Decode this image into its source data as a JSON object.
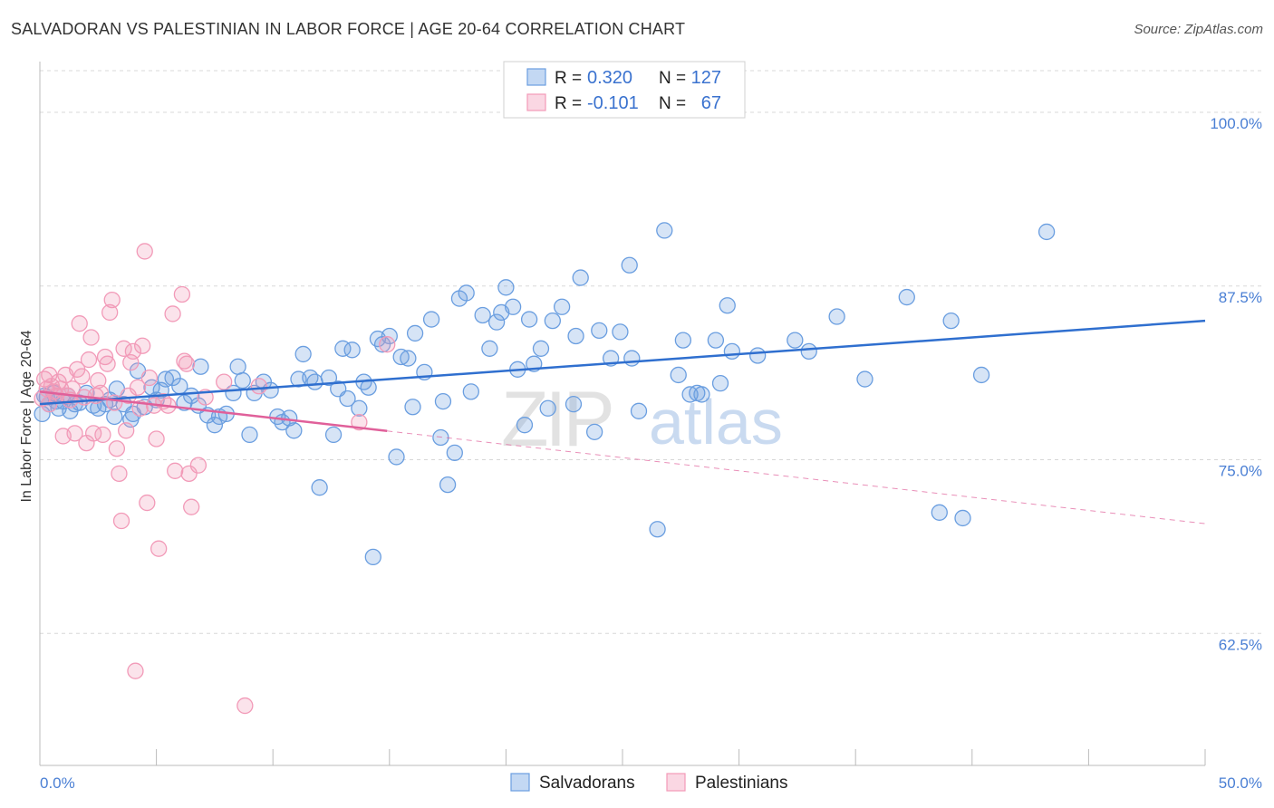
{
  "chart_data": {
    "type": "scatter",
    "title": "SALVADORAN VS PALESTINIAN IN LABOR FORCE | AGE 20-64 CORRELATION CHART",
    "source": "Source: ZipAtlas.com",
    "xlabel": "",
    "ylabel": "In Labor Force | Age 20-64",
    "xlim": [
      0,
      50
    ],
    "ylim": [
      53,
      103
    ],
    "x_tick_labels": [
      "0.0%",
      "50.0%"
    ],
    "y_ticks": [
      62.5,
      75.0,
      87.5,
      100.0
    ],
    "y_tick_labels": [
      "62.5%",
      "75.0%",
      "87.5%",
      "100.0%"
    ],
    "grid": "horizontal dashed",
    "legend_position": "top-center",
    "watermark": "ZIPatlas",
    "stats": [
      {
        "r_label": "R =",
        "r_value": "0.320",
        "n_label": "N =",
        "n_value": "127"
      },
      {
        "r_label": "R =",
        "r_value": "-0.101",
        "n_label": "N =",
        "n_value": "67"
      }
    ],
    "series": [
      {
        "name": "Salvadorans",
        "color": "#6a9ee0",
        "line_color": "#2f6fcf",
        "trend": {
          "x": [
            0,
            50
          ],
          "y": [
            79.0,
            85.0
          ],
          "dashed_from": null
        },
        "points": [
          [
            0.1,
            78.3
          ],
          [
            0.3,
            79.5
          ],
          [
            0.4,
            79.0
          ],
          [
            0.6,
            79.8
          ],
          [
            0.8,
            78.7
          ],
          [
            1.0,
            79.2
          ],
          [
            1.2,
            79.6
          ],
          [
            1.5,
            79.0
          ],
          [
            1.7,
            79.1
          ],
          [
            2.0,
            79.8
          ],
          [
            2.3,
            78.9
          ],
          [
            2.5,
            78.7
          ],
          [
            2.8,
            79.0
          ],
          [
            3.0,
            79.3
          ],
          [
            3.2,
            78.1
          ],
          [
            3.3,
            80.1
          ],
          [
            3.6,
            79.0
          ],
          [
            3.9,
            77.9
          ],
          [
            4.0,
            78.3
          ],
          [
            4.2,
            81.4
          ],
          [
            4.5,
            78.8
          ],
          [
            4.8,
            80.2
          ],
          [
            5.0,
            79.3
          ],
          [
            5.2,
            80.0
          ],
          [
            5.4,
            80.8
          ],
          [
            5.7,
            80.9
          ],
          [
            6.0,
            80.3
          ],
          [
            6.2,
            79.1
          ],
          [
            6.5,
            79.6
          ],
          [
            6.8,
            78.9
          ],
          [
            6.9,
            81.7
          ],
          [
            7.2,
            78.2
          ],
          [
            7.5,
            77.5
          ],
          [
            7.7,
            78.1
          ],
          [
            8.0,
            78.3
          ],
          [
            8.3,
            79.8
          ],
          [
            8.5,
            81.7
          ],
          [
            8.7,
            80.7
          ],
          [
            9.0,
            76.8
          ],
          [
            9.2,
            79.8
          ],
          [
            9.6,
            80.6
          ],
          [
            9.9,
            80.0
          ],
          [
            10.2,
            78.1
          ],
          [
            10.4,
            77.7
          ],
          [
            10.7,
            78.0
          ],
          [
            10.9,
            77.1
          ],
          [
            11.1,
            80.8
          ],
          [
            11.3,
            82.6
          ],
          [
            11.6,
            80.9
          ],
          [
            11.8,
            80.6
          ],
          [
            12.0,
            73.0
          ],
          [
            12.4,
            80.9
          ],
          [
            12.6,
            76.8
          ],
          [
            12.8,
            80.1
          ],
          [
            13.0,
            83.0
          ],
          [
            13.2,
            79.4
          ],
          [
            13.4,
            82.9
          ],
          [
            13.7,
            78.7
          ],
          [
            13.9,
            80.6
          ],
          [
            14.1,
            80.2
          ],
          [
            14.3,
            68.0
          ],
          [
            14.5,
            83.7
          ],
          [
            14.7,
            83.3
          ],
          [
            15.0,
            83.9
          ],
          [
            15.3,
            75.2
          ],
          [
            15.5,
            82.4
          ],
          [
            15.8,
            82.3
          ],
          [
            16.0,
            78.8
          ],
          [
            16.1,
            84.1
          ],
          [
            16.5,
            81.3
          ],
          [
            16.8,
            85.1
          ],
          [
            17.2,
            76.6
          ],
          [
            17.3,
            79.2
          ],
          [
            17.5,
            73.2
          ],
          [
            17.8,
            75.5
          ],
          [
            18.0,
            86.6
          ],
          [
            18.3,
            87.0
          ],
          [
            18.5,
            79.9
          ],
          [
            19.0,
            85.4
          ],
          [
            19.3,
            83.0
          ],
          [
            19.6,
            84.9
          ],
          [
            19.8,
            85.6
          ],
          [
            20.0,
            87.4
          ],
          [
            20.3,
            86.0
          ],
          [
            20.5,
            81.5
          ],
          [
            20.8,
            77.5
          ],
          [
            21.0,
            85.1
          ],
          [
            21.2,
            81.9
          ],
          [
            21.5,
            83.0
          ],
          [
            21.8,
            78.7
          ],
          [
            22.0,
            85.0
          ],
          [
            22.4,
            86.0
          ],
          [
            22.9,
            79.0
          ],
          [
            23.0,
            83.9
          ],
          [
            23.2,
            88.1
          ],
          [
            23.8,
            77.0
          ],
          [
            24.0,
            84.3
          ],
          [
            24.5,
            82.3
          ],
          [
            24.9,
            84.2
          ],
          [
            25.3,
            89.0
          ],
          [
            25.4,
            82.3
          ],
          [
            25.7,
            78.5
          ],
          [
            26.5,
            70.0
          ],
          [
            26.8,
            91.5
          ],
          [
            27.4,
            81.1
          ],
          [
            27.6,
            83.6
          ],
          [
            27.9,
            79.7
          ],
          [
            28.2,
            79.8
          ],
          [
            28.4,
            79.7
          ],
          [
            29.0,
            83.6
          ],
          [
            29.2,
            80.5
          ],
          [
            29.5,
            86.1
          ],
          [
            29.7,
            82.8
          ],
          [
            30.8,
            82.5
          ],
          [
            32.4,
            83.6
          ],
          [
            33.0,
            82.8
          ],
          [
            34.2,
            85.3
          ],
          [
            35.4,
            80.8
          ],
          [
            37.2,
            86.7
          ],
          [
            38.6,
            71.2
          ],
          [
            39.1,
            85.0
          ],
          [
            39.6,
            70.8
          ],
          [
            40.4,
            81.1
          ],
          [
            43.2,
            91.4
          ],
          [
            0.2,
            79.6
          ],
          [
            0.7,
            79.2
          ],
          [
            1.3,
            78.5
          ]
        ]
      },
      {
        "name": "Palestinians",
        "color": "#f29ab8",
        "line_color": "#e0609a",
        "trend": {
          "x": [
            0,
            50
          ],
          "y": [
            79.9,
            70.4
          ],
          "dashed_from": 14.9
        },
        "points": [
          [
            0.1,
            79.4
          ],
          [
            0.2,
            80.8
          ],
          [
            0.3,
            80.1
          ],
          [
            0.4,
            81.1
          ],
          [
            0.5,
            80.3
          ],
          [
            0.6,
            79.9
          ],
          [
            0.7,
            79.6
          ],
          [
            0.8,
            80.6
          ],
          [
            0.9,
            80.1
          ],
          [
            1.0,
            76.7
          ],
          [
            1.1,
            81.1
          ],
          [
            1.2,
            79.6
          ],
          [
            1.3,
            79.3
          ],
          [
            1.4,
            80.1
          ],
          [
            1.5,
            76.9
          ],
          [
            1.6,
            81.5
          ],
          [
            1.7,
            84.8
          ],
          [
            1.8,
            81.0
          ],
          [
            1.9,
            79.5
          ],
          [
            2.0,
            76.2
          ],
          [
            2.1,
            82.2
          ],
          [
            2.2,
            83.8
          ],
          [
            2.3,
            76.9
          ],
          [
            2.4,
            79.6
          ],
          [
            2.5,
            80.7
          ],
          [
            2.6,
            79.8
          ],
          [
            2.7,
            76.8
          ],
          [
            2.8,
            82.4
          ],
          [
            2.9,
            81.9
          ],
          [
            3.0,
            85.6
          ],
          [
            3.1,
            86.5
          ],
          [
            3.2,
            79.1
          ],
          [
            3.3,
            75.8
          ],
          [
            3.4,
            74.0
          ],
          [
            3.5,
            70.6
          ],
          [
            3.6,
            83.0
          ],
          [
            3.7,
            77.1
          ],
          [
            3.8,
            79.6
          ],
          [
            3.9,
            82.0
          ],
          [
            4.0,
            82.8
          ],
          [
            4.1,
            59.8
          ],
          [
            4.2,
            80.2
          ],
          [
            4.3,
            78.7
          ],
          [
            4.4,
            83.2
          ],
          [
            4.5,
            90.0
          ],
          [
            4.6,
            71.9
          ],
          [
            4.7,
            80.9
          ],
          [
            4.9,
            78.9
          ],
          [
            5.0,
            76.5
          ],
          [
            5.1,
            68.6
          ],
          [
            5.3,
            79.2
          ],
          [
            5.5,
            78.9
          ],
          [
            5.7,
            85.5
          ],
          [
            5.8,
            74.2
          ],
          [
            6.1,
            86.9
          ],
          [
            6.2,
            82.1
          ],
          [
            6.3,
            81.9
          ],
          [
            6.4,
            74.0
          ],
          [
            6.5,
            71.6
          ],
          [
            6.8,
            74.6
          ],
          [
            7.1,
            79.5
          ],
          [
            7.9,
            80.6
          ],
          [
            8.8,
            57.3
          ],
          [
            9.4,
            80.3
          ],
          [
            13.7,
            77.7
          ],
          [
            14.9,
            83.3
          ],
          [
            0.4,
            79.0
          ]
        ]
      }
    ]
  }
}
